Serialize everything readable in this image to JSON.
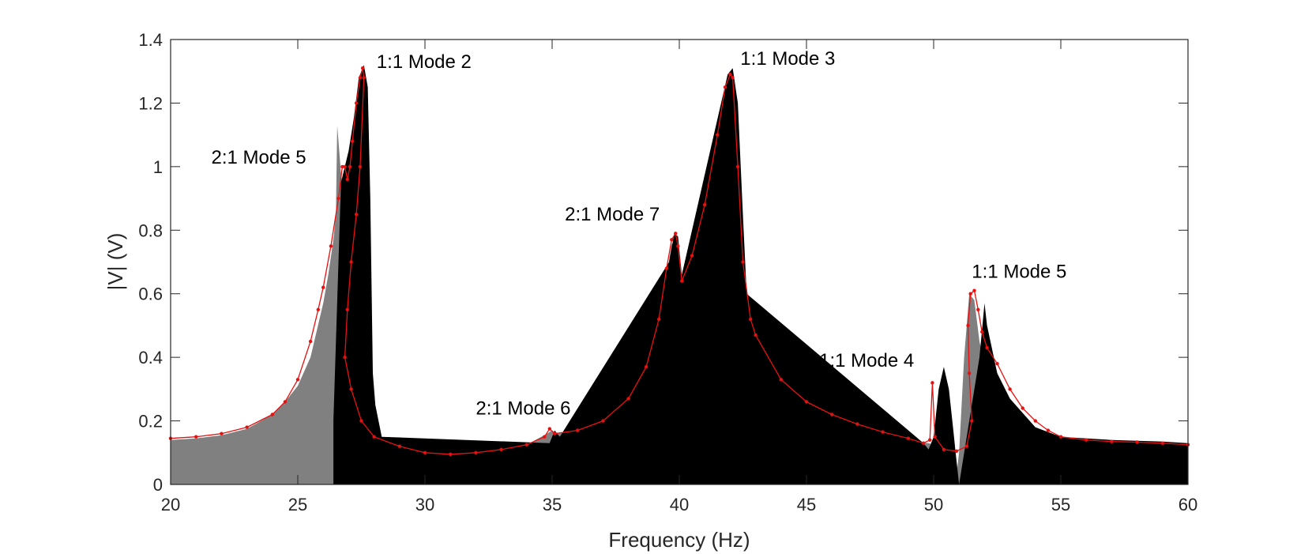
{
  "chart_data": {
    "type": "area",
    "title": "",
    "xlabel": "Frequency (Hz)",
    "ylabel": "|V| (V)",
    "xlim": [
      20,
      60
    ],
    "ylim": [
      0,
      1.4
    ],
    "xticks": [
      "20",
      "25",
      "30",
      "35",
      "40",
      "45",
      "50",
      "55",
      "60"
    ],
    "yticks": [
      "0",
      "0.2",
      "0.4",
      "0.6",
      "0.8",
      "1",
      "1.2",
      "1.4"
    ],
    "grid": false,
    "legend": "none",
    "colors": {
      "gray_fill": "#808080",
      "black_fill": "#000000",
      "red_line": "#e8100f",
      "axis": "#262626"
    },
    "series": [
      {
        "style": "gray-filled-envelope",
        "points": [
          [
            20,
            0.14
          ],
          [
            21,
            0.145
          ],
          [
            22,
            0.155
          ],
          [
            23,
            0.175
          ],
          [
            24,
            0.22
          ],
          [
            24.5,
            0.26
          ],
          [
            25,
            0.31
          ],
          [
            25.5,
            0.4
          ],
          [
            26,
            0.57
          ],
          [
            26.2,
            0.66
          ],
          [
            26.4,
            0.77
          ],
          [
            26.5,
            0.85
          ],
          [
            26.55,
            1.13
          ],
          [
            26.7,
            0.98
          ],
          [
            26.8,
            0.92
          ],
          [
            26.9,
            0.85
          ],
          [
            27.0,
            0.45
          ],
          [
            27.3,
            0.3
          ],
          [
            27.6,
            0.2
          ],
          [
            28,
            0.15
          ],
          [
            29,
            0.12
          ],
          [
            30,
            0.1
          ],
          [
            31,
            0.095
          ],
          [
            32,
            0.1
          ],
          [
            33,
            0.11
          ],
          [
            34,
            0.125
          ],
          [
            34.8,
            0.16
          ],
          [
            35,
            0.17
          ],
          [
            35.2,
            0.16
          ],
          [
            36,
            0.17
          ],
          [
            37,
            0.2
          ],
          [
            38,
            0.27
          ],
          [
            38.7,
            0.37
          ],
          [
            39.2,
            0.5
          ],
          [
            39.5,
            0.65
          ],
          [
            39.7,
            0.76
          ],
          [
            39.9,
            0.7
          ],
          [
            40.1,
            0.65
          ],
          [
            40.5,
            0.72
          ],
          [
            41,
            0.88
          ],
          [
            41.5,
            1.1
          ],
          [
            41.9,
            1.27
          ],
          [
            42.1,
            1.2
          ],
          [
            42.4,
            0.9
          ],
          [
            42.7,
            0.55
          ],
          [
            43,
            0.45
          ],
          [
            44,
            0.33
          ],
          [
            45,
            0.26
          ],
          [
            46,
            0.22
          ],
          [
            47,
            0.19
          ],
          [
            48,
            0.165
          ],
          [
            49,
            0.14
          ],
          [
            49.8,
            0.13
          ],
          [
            50.2,
            0.12
          ],
          [
            50.8,
            0.11
          ],
          [
            50.85,
            0.0
          ],
          [
            51.0,
            0.1
          ],
          [
            51.2,
            0.4
          ],
          [
            51.4,
            0.6
          ],
          [
            51.6,
            0.58
          ],
          [
            51.8,
            0.45
          ],
          [
            52,
            0.38
          ],
          [
            52.5,
            0.3
          ],
          [
            53,
            0.22
          ],
          [
            53.5,
            0.18
          ],
          [
            54,
            0.15
          ],
          [
            56,
            0.13
          ],
          [
            58,
            0.13
          ],
          [
            60,
            0.12
          ]
        ]
      },
      {
        "style": "black-filled-response",
        "points": [
          [
            26.4,
            0.2
          ],
          [
            26.7,
            0.95
          ],
          [
            27.0,
            1.05
          ],
          [
            27.2,
            1.15
          ],
          [
            27.4,
            1.28
          ],
          [
            27.6,
            1.32
          ],
          [
            27.75,
            1.25
          ],
          [
            27.85,
            0.9
          ],
          [
            27.95,
            0.35
          ],
          [
            28.05,
            0.25
          ],
          [
            28.3,
            0.15
          ],
          [
            34.9,
            0.13
          ],
          [
            35.1,
            0.17
          ],
          [
            35.3,
            0.15
          ],
          [
            39.6,
            0.7
          ],
          [
            39.8,
            0.79
          ],
          [
            39.95,
            0.78
          ],
          [
            40.1,
            0.66
          ],
          [
            41.9,
            1.29
          ],
          [
            42.1,
            1.31
          ],
          [
            42.3,
            1.2
          ],
          [
            42.5,
            0.85
          ],
          [
            42.65,
            0.6
          ],
          [
            49.6,
            0.13
          ],
          [
            49.8,
            0.11
          ],
          [
            50.0,
            0.15
          ],
          [
            50.2,
            0.3
          ],
          [
            50.4,
            0.37
          ],
          [
            50.6,
            0.3
          ],
          [
            50.8,
            0.15
          ],
          [
            50.85,
            0.11
          ],
          [
            51.0,
            0.0
          ],
          [
            51.8,
            0.4
          ],
          [
            52.0,
            0.57
          ],
          [
            52.1,
            0.5
          ],
          [
            52.5,
            0.35
          ],
          [
            53,
            0.27
          ],
          [
            54,
            0.18
          ],
          [
            55,
            0.15
          ],
          [
            57,
            0.14
          ],
          [
            59,
            0.135
          ],
          [
            60,
            0.13
          ]
        ]
      },
      {
        "style": "red-marker-line",
        "points": [
          [
            20,
            0.145
          ],
          [
            21,
            0.15
          ],
          [
            22,
            0.16
          ],
          [
            23,
            0.18
          ],
          [
            24,
            0.22
          ],
          [
            24.5,
            0.26
          ],
          [
            25,
            0.33
          ],
          [
            25.5,
            0.45
          ],
          [
            25.8,
            0.55
          ],
          [
            26,
            0.62
          ],
          [
            26.3,
            0.75
          ],
          [
            26.6,
            0.9
          ],
          [
            26.75,
            1.0
          ],
          [
            26.85,
            1.0
          ],
          [
            26.95,
            0.96
          ],
          [
            27.05,
            1.0
          ],
          [
            27.15,
            1.08
          ],
          [
            27.3,
            1.2
          ],
          [
            27.45,
            1.28
          ],
          [
            27.55,
            1.31
          ],
          [
            27.6,
            1.28
          ],
          [
            27.45,
            1.0
          ],
          [
            27.3,
            0.85
          ],
          [
            27.1,
            0.7
          ],
          [
            26.95,
            0.55
          ],
          [
            26.85,
            0.4
          ],
          [
            27.1,
            0.3
          ],
          [
            27.5,
            0.2
          ],
          [
            28,
            0.15
          ],
          [
            29,
            0.12
          ],
          [
            30,
            0.1
          ],
          [
            31,
            0.095
          ],
          [
            32,
            0.1
          ],
          [
            33,
            0.11
          ],
          [
            34,
            0.125
          ],
          [
            34.7,
            0.15
          ],
          [
            34.9,
            0.175
          ],
          [
            35.1,
            0.16
          ],
          [
            36,
            0.17
          ],
          [
            37,
            0.2
          ],
          [
            38,
            0.27
          ],
          [
            38.7,
            0.37
          ],
          [
            39.2,
            0.52
          ],
          [
            39.5,
            0.68
          ],
          [
            39.7,
            0.77
          ],
          [
            39.85,
            0.79
          ],
          [
            39.95,
            0.75
          ],
          [
            40.1,
            0.64
          ],
          [
            40.5,
            0.72
          ],
          [
            41,
            0.88
          ],
          [
            41.5,
            1.1
          ],
          [
            41.8,
            1.25
          ],
          [
            42.0,
            1.29
          ],
          [
            42.1,
            1.28
          ],
          [
            42.3,
            1.0
          ],
          [
            42.5,
            0.7
          ],
          [
            42.8,
            0.52
          ],
          [
            43,
            0.47
          ],
          [
            44,
            0.33
          ],
          [
            45,
            0.26
          ],
          [
            46,
            0.22
          ],
          [
            47,
            0.19
          ],
          [
            48,
            0.165
          ],
          [
            49,
            0.145
          ],
          [
            49.6,
            0.13
          ],
          [
            49.85,
            0.14
          ],
          [
            49.95,
            0.32
          ],
          [
            50.05,
            0.15
          ],
          [
            50.4,
            0.11
          ],
          [
            50.9,
            0.105
          ],
          [
            51.3,
            0.12
          ],
          [
            51.5,
            0.2
          ],
          [
            51.4,
            0.35
          ],
          [
            51.35,
            0.5
          ],
          [
            51.45,
            0.6
          ],
          [
            51.6,
            0.61
          ],
          [
            51.75,
            0.55
          ],
          [
            51.9,
            0.48
          ],
          [
            52.1,
            0.43
          ],
          [
            52.5,
            0.38
          ],
          [
            53,
            0.3
          ],
          [
            53.5,
            0.24
          ],
          [
            54,
            0.2
          ],
          [
            54.5,
            0.17
          ],
          [
            55,
            0.15
          ],
          [
            56,
            0.14
          ],
          [
            57,
            0.135
          ],
          [
            58,
            0.133
          ],
          [
            59,
            0.13
          ],
          [
            60,
            0.125
          ]
        ]
      }
    ],
    "annotations": [
      {
        "text": "2:1 Mode 5",
        "x": 21.6,
        "y": 1.01
      },
      {
        "text": "1:1 Mode 2",
        "x": 28.1,
        "y": 1.31
      },
      {
        "text": "2:1 Mode 6",
        "x": 32.0,
        "y": 0.22
      },
      {
        "text": "2:1 Mode 7",
        "x": 35.5,
        "y": 0.83
      },
      {
        "text": "1:1 Mode 3",
        "x": 42.4,
        "y": 1.32
      },
      {
        "text": "1:1 Mode 4",
        "x": 45.5,
        "y": 0.37
      },
      {
        "text": "1:1 Mode 5",
        "x": 51.5,
        "y": 0.65
      }
    ]
  }
}
